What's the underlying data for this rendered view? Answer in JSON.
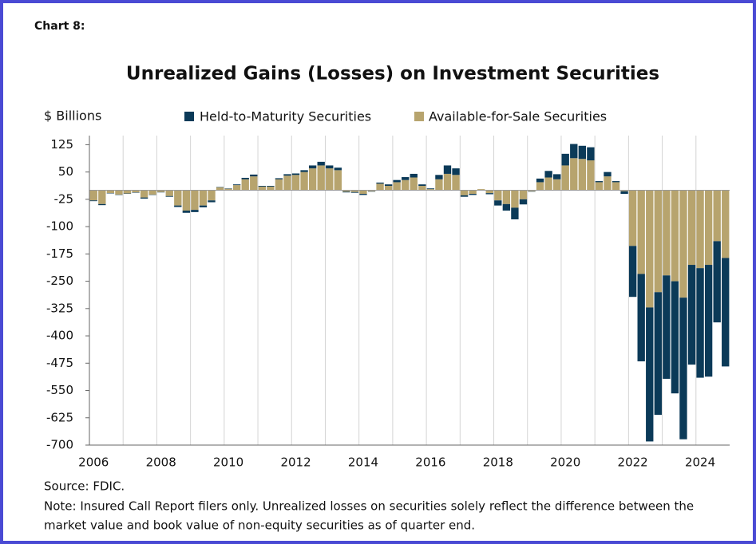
{
  "chart_data": {
    "type": "bar",
    "stacked": true,
    "label": "Chart 8:",
    "title": "Unrealized Gains (Losses) on Investment Securities",
    "y_label": "$ Billions",
    "categories": [
      "2006",
      null,
      null,
      null,
      null,
      null,
      null,
      null,
      "2008",
      null,
      null,
      null,
      null,
      null,
      null,
      null,
      "2010",
      null,
      null,
      null,
      null,
      null,
      null,
      null,
      "2012",
      null,
      null,
      null,
      null,
      null,
      null,
      null,
      "2014",
      null,
      null,
      null,
      null,
      null,
      null,
      null,
      "2016",
      null,
      null,
      null,
      null,
      null,
      null,
      null,
      "2018",
      null,
      null,
      null,
      null,
      null,
      null,
      null,
      "2020",
      null,
      null,
      null,
      null,
      null,
      null,
      null,
      "2022",
      null,
      null,
      null,
      null,
      null,
      null,
      null,
      "2024",
      null,
      null,
      null
    ],
    "series": [
      {
        "name": "Held-to-Maturity Securities",
        "color": "#0b3a58",
        "values": [
          -2,
          -3,
          -1,
          -1,
          -1,
          -1,
          -3,
          -1,
          -1,
          -2,
          -4,
          -6,
          -6,
          -5,
          -5,
          1,
          1,
          2,
          4,
          5,
          2,
          2,
          3,
          4,
          4,
          5,
          8,
          10,
          8,
          7,
          -2,
          -2,
          -3,
          -1,
          3,
          4,
          6,
          8,
          10,
          4,
          2,
          12,
          23,
          18,
          -4,
          -3,
          0,
          -3,
          -14,
          -18,
          -32,
          -14,
          -1,
          10,
          18,
          14,
          32,
          39,
          36,
          36,
          3,
          12,
          3,
          -7,
          -140,
          -240,
          -368,
          -337,
          -284,
          -308,
          -389,
          -274,
          -301,
          -307,
          -223,
          -298
        ]
      },
      {
        "name": "Available-for-Sale Securities",
        "color": "#b7a46e",
        "values": [
          -28,
          -38,
          -8,
          -12,
          -9,
          -6,
          -20,
          -12,
          -5,
          -16,
          -42,
          -56,
          -54,
          -42,
          -28,
          8,
          4,
          14,
          30,
          38,
          10,
          10,
          30,
          40,
          42,
          50,
          60,
          68,
          60,
          55,
          -4,
          -5,
          -10,
          -3,
          18,
          12,
          22,
          28,
          35,
          12,
          3,
          30,
          45,
          42,
          -14,
          -10,
          3,
          -8,
          -28,
          -38,
          -48,
          -25,
          -3,
          22,
          35,
          30,
          68,
          88,
          86,
          82,
          22,
          38,
          22,
          -3,
          -153,
          -230,
          -322,
          -280,
          -234,
          -250,
          -295,
          -205,
          -214,
          -205,
          -140,
          -186
        ]
      }
    ],
    "ylim": [
      -700,
      150
    ],
    "yticks": [
      125,
      50,
      -25,
      -100,
      -175,
      -250,
      -325,
      -400,
      -475,
      -550,
      -625,
      -700
    ],
    "legend": "top",
    "source": "Source: FDIC.",
    "notes": [
      "Note: Insured Call Report filers only. Unrealized losses on securities solely reflect the difference between the",
      "market value and book value of non-equity securities as of quarter end."
    ]
  }
}
